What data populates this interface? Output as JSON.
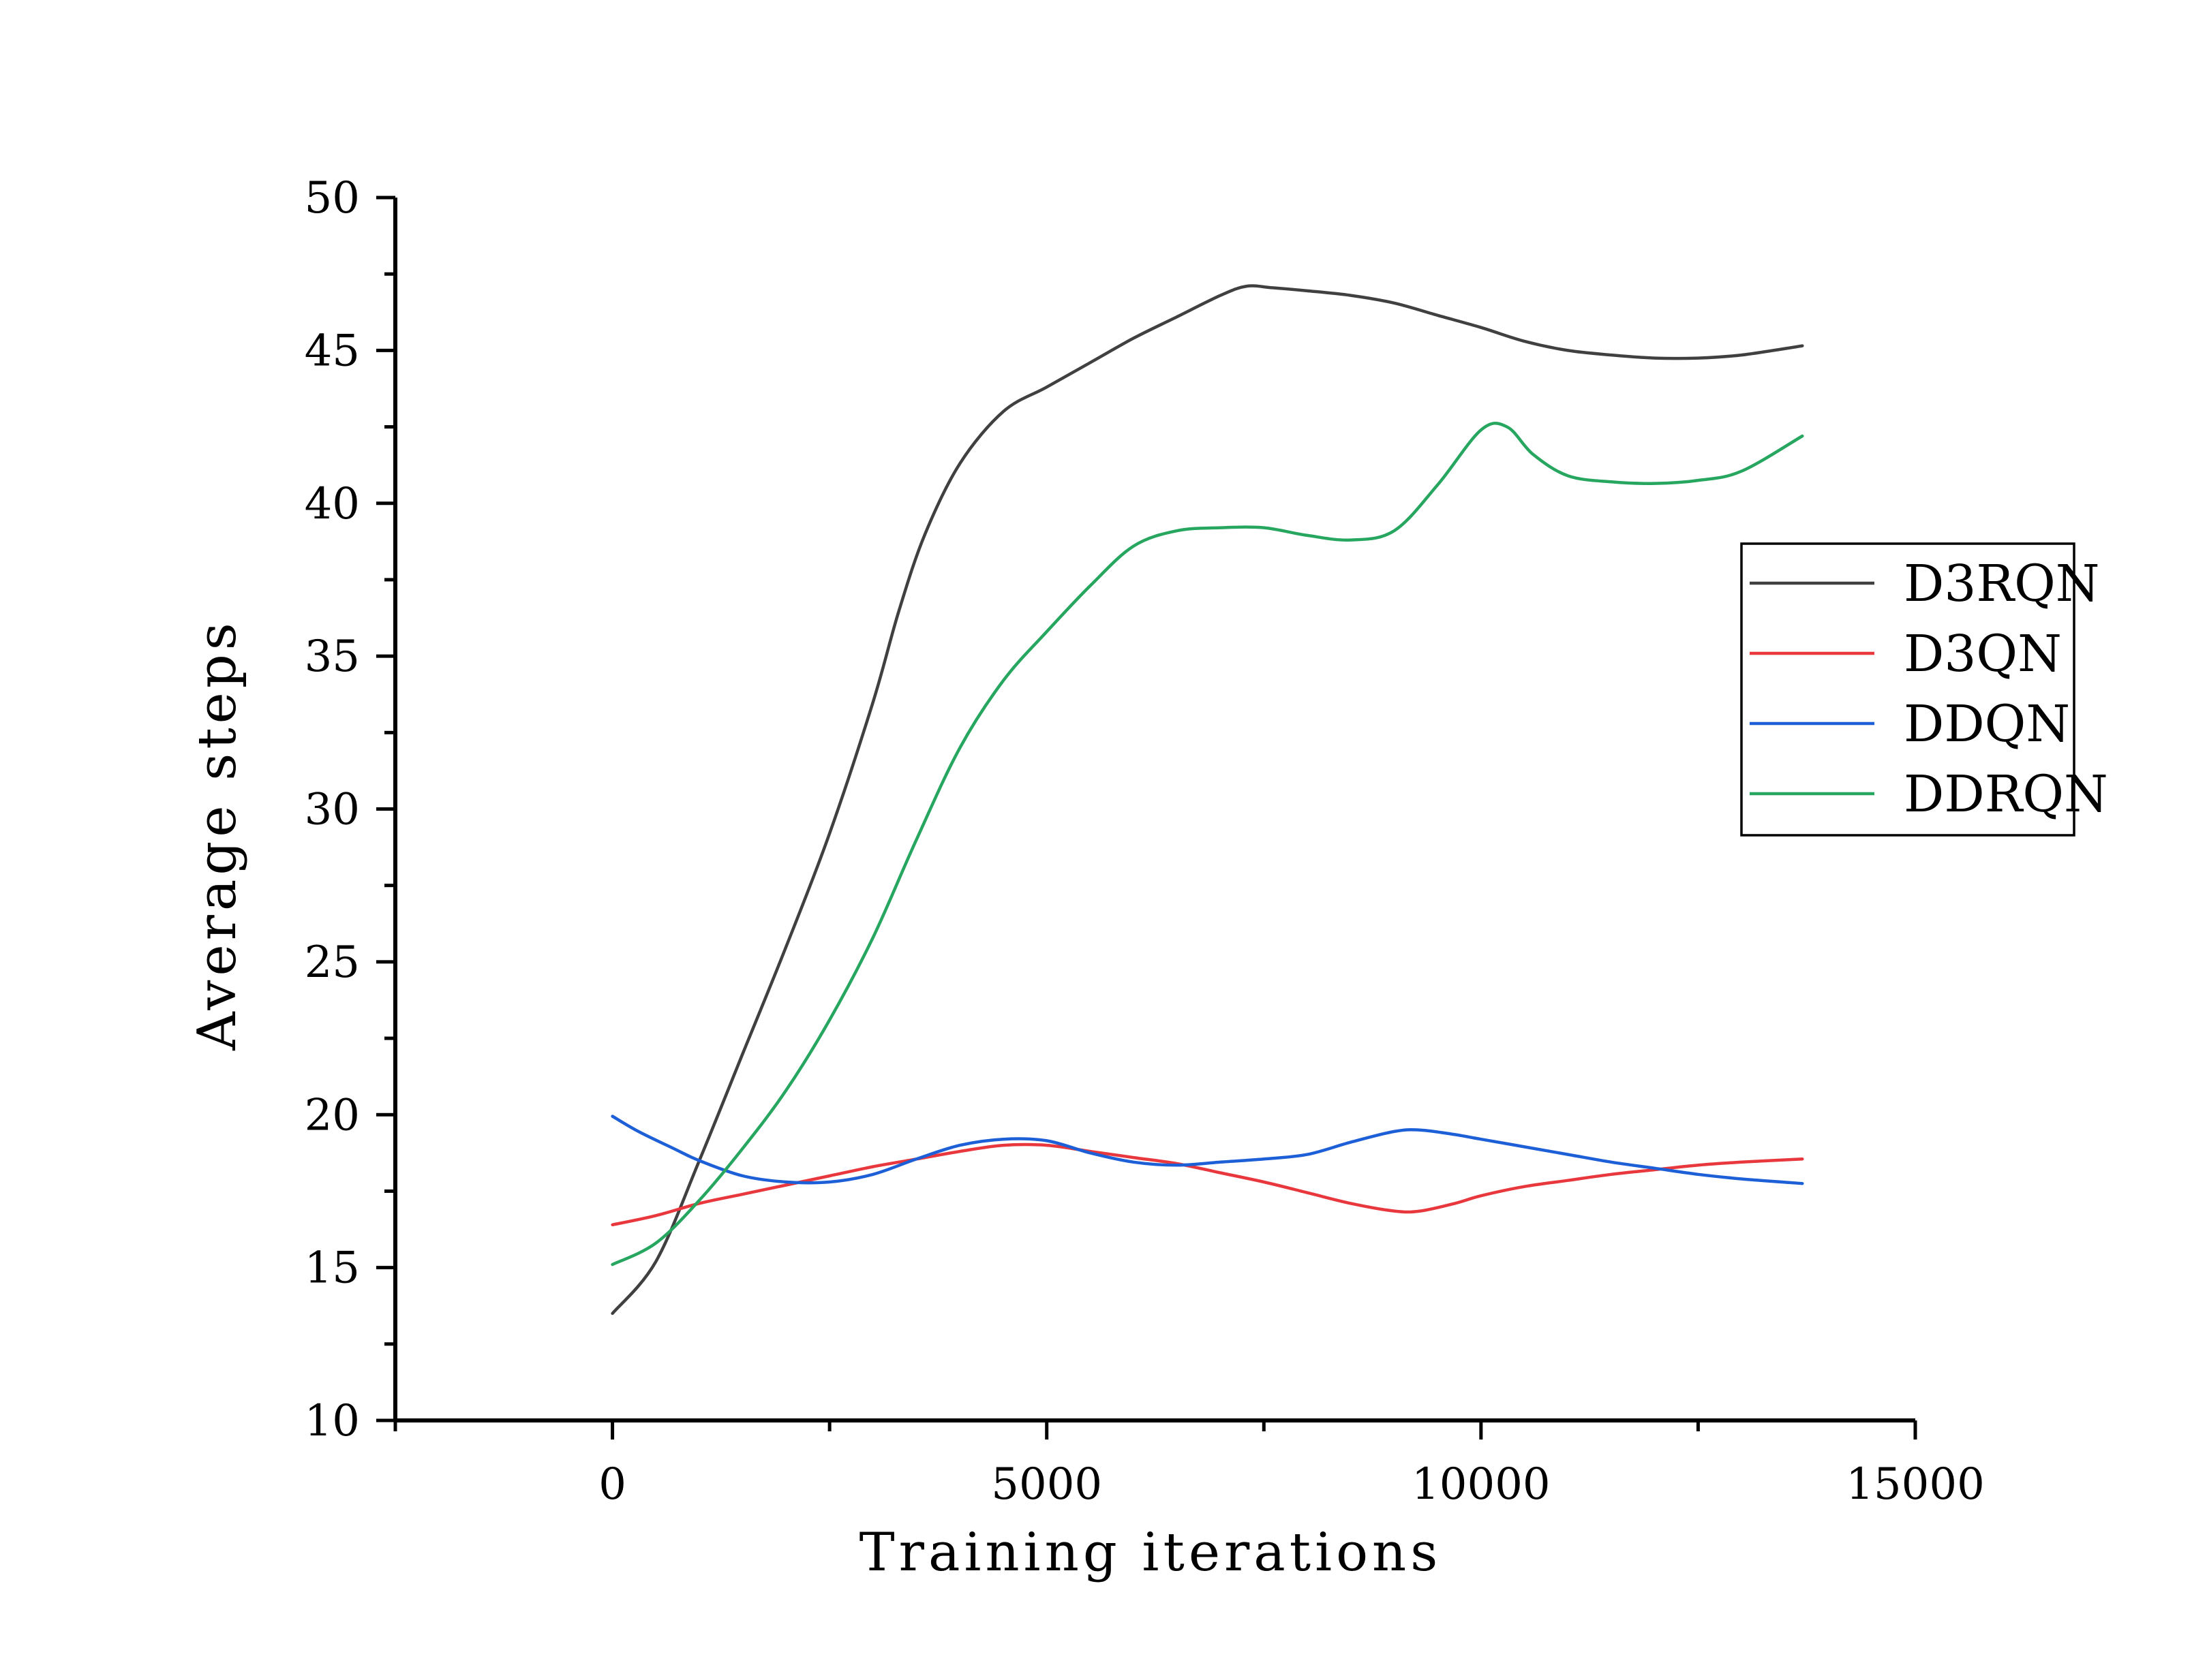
{
  "chart_data": {
    "type": "line",
    "title": "",
    "xlabel": "Training iterations",
    "ylabel": "Average steps",
    "xlim": [
      -2500,
      15000
    ],
    "ylim": [
      10,
      50
    ],
    "x_ticks": [
      0,
      5000,
      10000,
      15000
    ],
    "x_tick_labels": [
      "0",
      "5000",
      "10000",
      "15000"
    ],
    "y_ticks": [
      10,
      15,
      20,
      25,
      30,
      35,
      40,
      45,
      50
    ],
    "y_tick_labels": [
      "10",
      "15",
      "20",
      "25",
      "30",
      "35",
      "40",
      "45",
      "50"
    ],
    "grid": false,
    "legend_position": "right",
    "series": [
      {
        "name": "D3RQN",
        "color": "#404040",
        "points": [
          [
            0,
            13.5
          ],
          [
            500,
            15.2
          ],
          [
            1000,
            18.5
          ],
          [
            1500,
            22
          ],
          [
            2000,
            25.5
          ],
          [
            2500,
            29.2
          ],
          [
            3000,
            33.5
          ],
          [
            3300,
            36.5
          ],
          [
            3600,
            39
          ],
          [
            4000,
            41.3
          ],
          [
            4500,
            43
          ],
          [
            5000,
            43.8
          ],
          [
            5500,
            44.6
          ],
          [
            6000,
            45.4
          ],
          [
            6500,
            46.1
          ],
          [
            7000,
            46.8
          ],
          [
            7300,
            47.1
          ],
          [
            7600,
            47.05
          ],
          [
            8000,
            46.95
          ],
          [
            8500,
            46.8
          ],
          [
            9000,
            46.55
          ],
          [
            9500,
            46.15
          ],
          [
            10000,
            45.75
          ],
          [
            10500,
            45.3
          ],
          [
            11000,
            45
          ],
          [
            11500,
            44.85
          ],
          [
            12000,
            44.75
          ],
          [
            12500,
            44.75
          ],
          [
            13000,
            44.85
          ],
          [
            13700,
            45.15
          ]
        ]
      },
      {
        "name": "D3QN",
        "color": "#e8383d",
        "points": [
          [
            0,
            16.4
          ],
          [
            500,
            16.7
          ],
          [
            1000,
            17.1
          ],
          [
            1500,
            17.4
          ],
          [
            2000,
            17.7
          ],
          [
            2500,
            18
          ],
          [
            3000,
            18.3
          ],
          [
            3500,
            18.55
          ],
          [
            4000,
            18.8
          ],
          [
            4500,
            19
          ],
          [
            5000,
            19
          ],
          [
            5500,
            18.8
          ],
          [
            6000,
            18.6
          ],
          [
            6500,
            18.4
          ],
          [
            7000,
            18.1
          ],
          [
            7500,
            17.8
          ],
          [
            8000,
            17.45
          ],
          [
            8500,
            17.1
          ],
          [
            9000,
            16.85
          ],
          [
            9300,
            16.85
          ],
          [
            9700,
            17.1
          ],
          [
            10000,
            17.35
          ],
          [
            10500,
            17.65
          ],
          [
            11000,
            17.85
          ],
          [
            11500,
            18.05
          ],
          [
            12000,
            18.2
          ],
          [
            12500,
            18.35
          ],
          [
            13000,
            18.45
          ],
          [
            13700,
            18.55
          ]
        ]
      },
      {
        "name": "DDQN",
        "color": "#1d5fd6",
        "points": [
          [
            0,
            19.95
          ],
          [
            300,
            19.45
          ],
          [
            700,
            18.9
          ],
          [
            1000,
            18.5
          ],
          [
            1500,
            18
          ],
          [
            2000,
            17.8
          ],
          [
            2500,
            17.8
          ],
          [
            3000,
            18.05
          ],
          [
            3500,
            18.55
          ],
          [
            4000,
            19
          ],
          [
            4500,
            19.2
          ],
          [
            5000,
            19.15
          ],
          [
            5500,
            18.75
          ],
          [
            6000,
            18.45
          ],
          [
            6500,
            18.35
          ],
          [
            7000,
            18.45
          ],
          [
            7500,
            18.55
          ],
          [
            8000,
            18.7
          ],
          [
            8500,
            19.1
          ],
          [
            9000,
            19.45
          ],
          [
            9300,
            19.5
          ],
          [
            9700,
            19.35
          ],
          [
            10000,
            19.2
          ],
          [
            10500,
            18.95
          ],
          [
            11000,
            18.7
          ],
          [
            11500,
            18.45
          ],
          [
            12000,
            18.25
          ],
          [
            12500,
            18.05
          ],
          [
            13000,
            17.9
          ],
          [
            13700,
            17.75
          ]
        ]
      },
      {
        "name": "DDRQN",
        "color": "#27a660",
        "points": [
          [
            0,
            15.1
          ],
          [
            500,
            15.8
          ],
          [
            1000,
            17.2
          ],
          [
            1500,
            18.9
          ],
          [
            2000,
            20.8
          ],
          [
            2500,
            23.1
          ],
          [
            3000,
            25.8
          ],
          [
            3500,
            29
          ],
          [
            4000,
            32
          ],
          [
            4500,
            34.2
          ],
          [
            5000,
            35.8
          ],
          [
            5500,
            37.3
          ],
          [
            6000,
            38.6
          ],
          [
            6500,
            39.1
          ],
          [
            7000,
            39.2
          ],
          [
            7500,
            39.2
          ],
          [
            8000,
            38.95
          ],
          [
            8500,
            38.8
          ],
          [
            9000,
            39.1
          ],
          [
            9500,
            40.6
          ],
          [
            10000,
            42.4
          ],
          [
            10300,
            42.5
          ],
          [
            10600,
            41.6
          ],
          [
            11000,
            40.9
          ],
          [
            11500,
            40.7
          ],
          [
            12000,
            40.65
          ],
          [
            12500,
            40.75
          ],
          [
            13000,
            41.05
          ],
          [
            13700,
            42.2
          ]
        ]
      }
    ]
  }
}
